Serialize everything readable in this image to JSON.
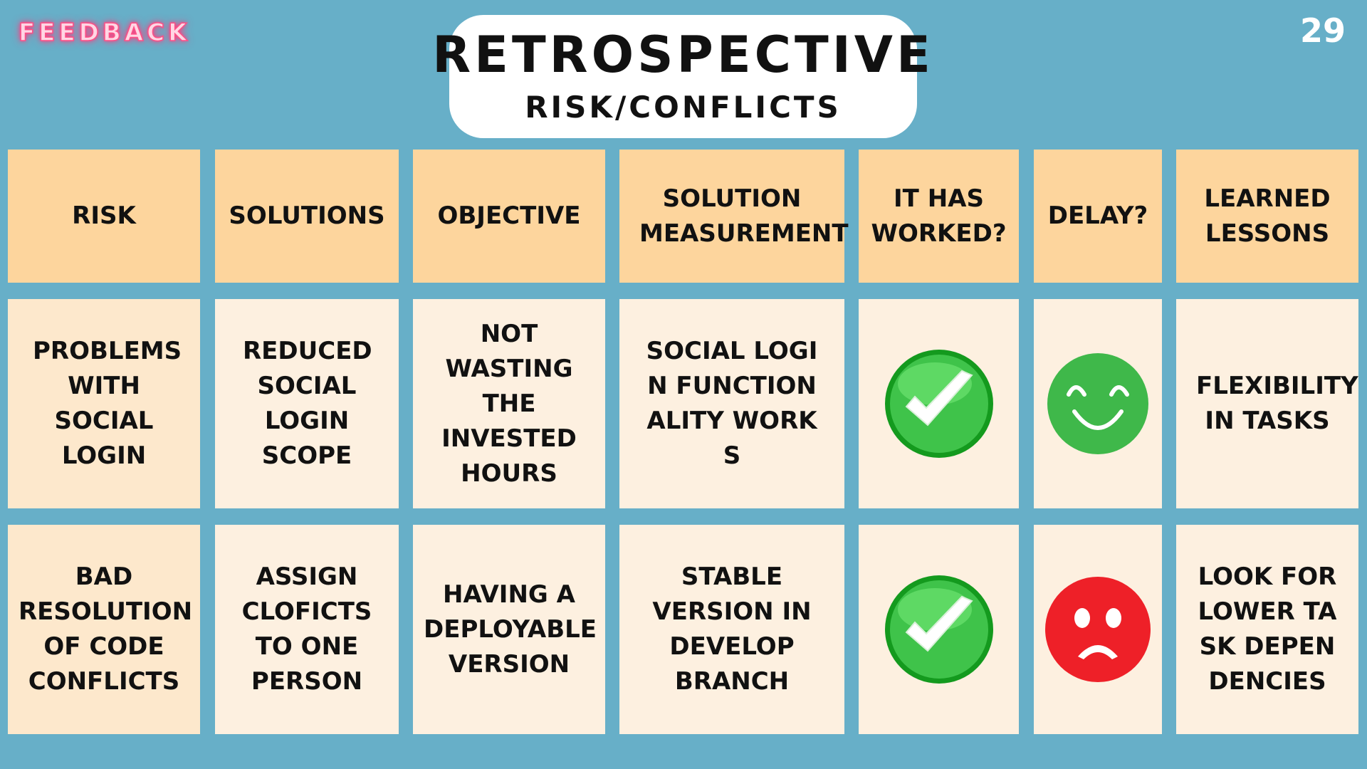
{
  "brand": "FEEDBACK",
  "page_number": "29",
  "title": "RETROSPECTIVE",
  "subtitle": "RISK/CONFLICTS",
  "headers": [
    "RISK",
    "SOLUTIONS",
    "OBJECTIVE",
    "SOLUTION MEASUREMENT",
    "IT HAS WORKED?",
    "DELAY?",
    "LEARNED LESSONS"
  ],
  "rows": [
    {
      "risk": "PROBLEMS WITH SOCIAL LOGIN",
      "solutions": "REDUCED SOCIAL LOGIN SCOPE",
      "objective": "NOT WASTING THE INVESTED HOURS",
      "measurement": "SOCIAL LOGIN FUNCTIONALITY WORKS",
      "worked_icon": "green-checkmark-icon",
      "delay_icon": "happy-face-icon",
      "lessons": "FLEXIBILITY IN TASKS"
    },
    {
      "risk": "BAD RESOLUTION OF CODE CONFLICTS",
      "solutions": "ASSIGN CLOFICTS TO ONE PERSON",
      "objective": "HAVING A DEPLOYABLE VERSION",
      "measurement": "STABLE VERSION IN DEVELOP BRANCH",
      "worked_icon": "green-checkmark-icon",
      "delay_icon": "sad-face-icon",
      "lessons": "LOOK FOR LOWER TASK DEPENDENCIES"
    }
  ],
  "colors": {
    "background": "#67afc8",
    "header_cell": "#fdd59d",
    "body_cell": "#fde8cc",
    "check_green": "#3fc34a",
    "happy_green": "#3fb84a",
    "sad_red": "#ee2028"
  }
}
